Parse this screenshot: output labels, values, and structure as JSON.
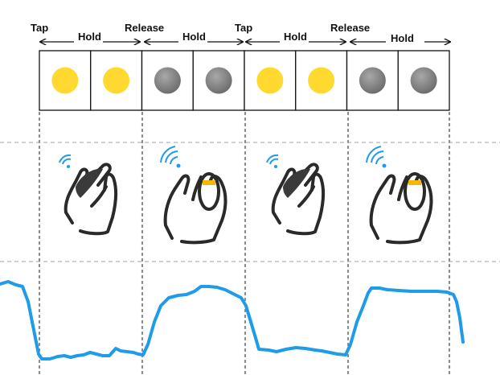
{
  "timeline": {
    "labels": [
      "Tap",
      "Hold",
      "Release",
      "Hold",
      "Tap",
      "Hold",
      "Release",
      "Hold"
    ]
  },
  "cells": [
    {
      "state": "on",
      "color": "#FFD92F"
    },
    {
      "state": "on",
      "color": "#FFD92F"
    },
    {
      "state": "off",
      "color": "#8E8E8E"
    },
    {
      "state": "off",
      "color": "#8E8E8E"
    },
    {
      "state": "on",
      "color": "#FFD92F"
    },
    {
      "state": "on",
      "color": "#FFD92F"
    },
    {
      "state": "off",
      "color": "#8E8E8E"
    },
    {
      "state": "off",
      "color": "#8E8E8E"
    }
  ],
  "gestures": [
    {
      "icon": "hand-clap-icon",
      "signal": "weak"
    },
    {
      "icon": "hand-ring-icon",
      "signal": "strong"
    },
    {
      "icon": "hand-clap-icon",
      "signal": "weak"
    },
    {
      "icon": "hand-ring-icon",
      "signal": "strong"
    }
  ],
  "colors": {
    "on": "#FFD92F",
    "off": "#8E8E8E",
    "signal": "#1E9BE9",
    "grid": "#999999",
    "accent": "#F5B800"
  }
}
